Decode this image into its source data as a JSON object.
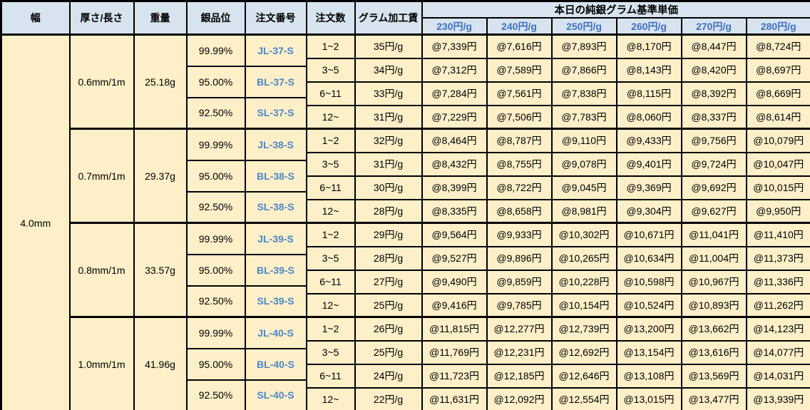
{
  "table": {
    "columns": [
      "幅",
      "厚さ/長さ",
      "重量",
      "銀品位",
      "注文番号",
      "注文数",
      "グラム加工賃"
    ],
    "price_header": "本日の純銀グラム基準単価",
    "price_columns": [
      "230円/g",
      "240円/g",
      "250円/g",
      "260円/g",
      "270円/g",
      "280円/g"
    ],
    "width_label": "4.0mm",
    "colors": {
      "header_bg": "#D7E4F0",
      "body_bg": "#FDEFC8",
      "border": "#000000",
      "price_col_text": "#4170C0",
      "order_code_text": "#4D87C9"
    },
    "blocks": [
      {
        "thickness_length": "0.6mm/1m",
        "weight": "25.18g",
        "purities": [
          {
            "purity": "99.99%",
            "code": "JL-37-S"
          },
          {
            "purity": "95.00%",
            "code": "BL-37-S"
          },
          {
            "purity": "92.50%",
            "code": "SL-37-S"
          }
        ],
        "tiers": [
          {
            "qty": "1~2",
            "fee": "35円/g",
            "prices": [
              "@7,339円",
              "@7,616円",
              "@7,893円",
              "@8,170円",
              "@8,447円",
              "@8,724円"
            ]
          },
          {
            "qty": "3~5",
            "fee": "34円/g",
            "prices": [
              "@7,312円",
              "@7,589円",
              "@7,866円",
              "@8,143円",
              "@8,420円",
              "@8,697円"
            ]
          },
          {
            "qty": "6~11",
            "fee": "33円/g",
            "prices": [
              "@7,284円",
              "@7,561円",
              "@7,838円",
              "@8,115円",
              "@8,392円",
              "@8,669円"
            ]
          },
          {
            "qty": "12~",
            "fee": "31円/g",
            "prices": [
              "@7,229円",
              "@7,506円",
              "@7,783円",
              "@8,060円",
              "@8,337円",
              "@8,614円"
            ]
          }
        ]
      },
      {
        "thickness_length": "0.7mm/1m",
        "weight": "29.37g",
        "purities": [
          {
            "purity": "99.99%",
            "code": "JL-38-S"
          },
          {
            "purity": "95.00%",
            "code": "BL-38-S"
          },
          {
            "purity": "92.50%",
            "code": "SL-38-S"
          }
        ],
        "tiers": [
          {
            "qty": "1~2",
            "fee": "32円/g",
            "prices": [
              "@8,464円",
              "@8,787円",
              "@9,110円",
              "@9,433円",
              "@9,756円",
              "@10,079円"
            ]
          },
          {
            "qty": "3~5",
            "fee": "31円/g",
            "prices": [
              "@8,432円",
              "@8,755円",
              "@9,078円",
              "@9,401円",
              "@9,724円",
              "@10,047円"
            ]
          },
          {
            "qty": "6~11",
            "fee": "30円/g",
            "prices": [
              "@8,399円",
              "@8,722円",
              "@9,045円",
              "@9,369円",
              "@9,692円",
              "@10,015円"
            ]
          },
          {
            "qty": "12~",
            "fee": "28円/g",
            "prices": [
              "@8,335円",
              "@8,658円",
              "@8,981円",
              "@9,304円",
              "@9,627円",
              "@9,950円"
            ]
          }
        ]
      },
      {
        "thickness_length": "0.8mm/1m",
        "weight": "33.57g",
        "purities": [
          {
            "purity": "99.99%",
            "code": "JL-39-S"
          },
          {
            "purity": "95.00%",
            "code": "BL-39-S"
          },
          {
            "purity": "92.50%",
            "code": "SL-39-S"
          }
        ],
        "tiers": [
          {
            "qty": "1~2",
            "fee": "29円/g",
            "prices": [
              "@9,564円",
              "@9,933円",
              "@10,302円",
              "@10,671円",
              "@11,041円",
              "@11,410円"
            ]
          },
          {
            "qty": "3~5",
            "fee": "28円/g",
            "prices": [
              "@9,527円",
              "@9,896円",
              "@10,265円",
              "@10,634円",
              "@11,004円",
              "@11,373円"
            ]
          },
          {
            "qty": "6~11",
            "fee": "27円/g",
            "prices": [
              "@9,490円",
              "@9,859円",
              "@10,228円",
              "@10,598円",
              "@10,967円",
              "@11,336円"
            ]
          },
          {
            "qty": "12~",
            "fee": "25円/g",
            "prices": [
              "@9,416円",
              "@9,785円",
              "@10,154円",
              "@10,524円",
              "@10,893円",
              "@11,262円"
            ]
          }
        ]
      },
      {
        "thickness_length": "1.0mm/1m",
        "weight": "41.96g",
        "purities": [
          {
            "purity": "99.99%",
            "code": "JL-40-S"
          },
          {
            "purity": "95.00%",
            "code": "BL-40-S"
          },
          {
            "purity": "92.50%",
            "code": "SL-40-S"
          }
        ],
        "tiers": [
          {
            "qty": "1~2",
            "fee": "26円/g",
            "prices": [
              "@11,815円",
              "@12,277円",
              "@12,739円",
              "@13,200円",
              "@13,662円",
              "@14,123円"
            ]
          },
          {
            "qty": "3~5",
            "fee": "25円/g",
            "prices": [
              "@11,769円",
              "@12,231円",
              "@12,692円",
              "@13,154円",
              "@13,616円",
              "@14,077円"
            ]
          },
          {
            "qty": "6~11",
            "fee": "24円/g",
            "prices": [
              "@11,723円",
              "@12,185円",
              "@12,646円",
              "@13,108円",
              "@13,569円",
              "@14,031円"
            ]
          },
          {
            "qty": "12~",
            "fee": "22円/g",
            "prices": [
              "@11,631円",
              "@12,092円",
              "@12,554円",
              "@13,015円",
              "@13,477円",
              "@13,939円"
            ]
          }
        ]
      }
    ]
  }
}
